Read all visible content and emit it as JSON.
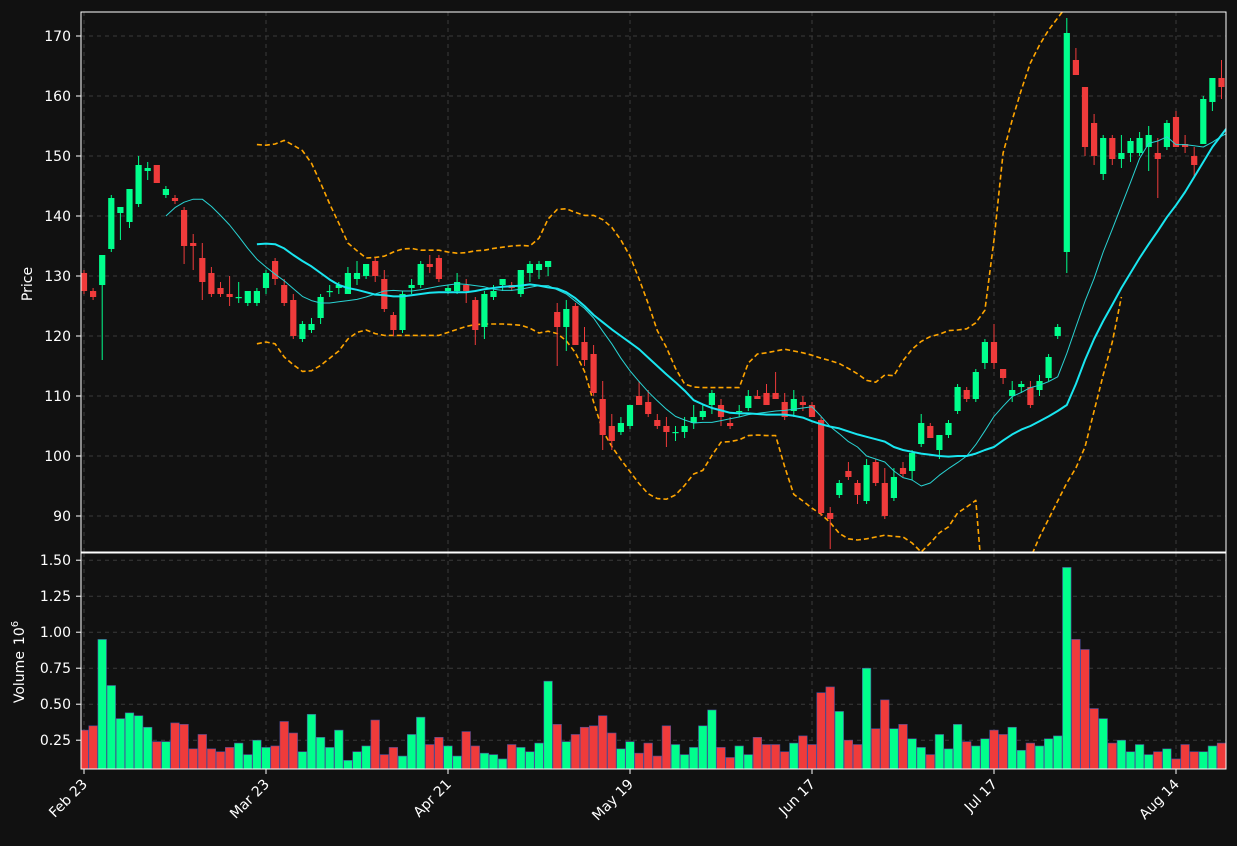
{
  "chart_data": {
    "type": "candlestick",
    "title": "",
    "colors": {
      "background": "#111111",
      "up": "#00ff8c",
      "down": "#ef3b3b",
      "ma_short": "#29d3d3",
      "ma_long": "#19e6f0",
      "bollinger": "#ffa500",
      "grid": "#3a3a3a",
      "text": "#ffffff"
    },
    "price_panel": {
      "ylabel": "Price",
      "ylim": [
        84,
        174
      ],
      "yticks": [
        90,
        100,
        110,
        120,
        130,
        140,
        150,
        160,
        170
      ],
      "grid": true
    },
    "volume_panel": {
      "ylabel": "Volume",
      "ylabel_exponent": "10",
      "ylabel_power": "6",
      "ylim": [
        0.05,
        1.55
      ],
      "yticks": [
        "0.25",
        "0.50",
        "0.75",
        "1.00",
        "1.25",
        "1.50"
      ],
      "grid": true
    },
    "xticks": [
      {
        "index": 0,
        "label": "Feb 23"
      },
      {
        "index": 20,
        "label": "Mar 23"
      },
      {
        "index": 40,
        "label": "Apr 21"
      },
      {
        "index": 60,
        "label": "May 19"
      },
      {
        "index": 80,
        "label": "Jun 17"
      },
      {
        "index": 100,
        "label": "Jul 17"
      },
      {
        "index": 120,
        "label": "Aug 14"
      }
    ],
    "ohlc": [
      [
        130.5,
        131.0,
        127.0,
        127.5
      ],
      [
        127.5,
        128.0,
        126.0,
        126.5
      ],
      [
        128.5,
        133.5,
        116.0,
        133.5
      ],
      [
        134.5,
        143.5,
        134.0,
        143.0
      ],
      [
        140.5,
        141.5,
        136.0,
        141.5
      ],
      [
        139.0,
        144.5,
        138.0,
        144.5
      ],
      [
        142.0,
        150.0,
        141.5,
        148.5
      ],
      [
        147.5,
        149.0,
        146.0,
        148.0
      ],
      [
        148.5,
        148.5,
        146.0,
        145.5
      ],
      [
        143.5,
        145.0,
        143.0,
        144.5
      ],
      [
        143.0,
        143.5,
        142.0,
        142.5
      ],
      [
        141.0,
        141.5,
        132.0,
        135.0
      ],
      [
        135.5,
        137.0,
        131.0,
        135.0
      ],
      [
        133.0,
        135.5,
        126.0,
        129.0
      ],
      [
        130.5,
        131.5,
        126.5,
        127.0
      ],
      [
        128.0,
        129.0,
        126.5,
        127.0
      ],
      [
        127.0,
        130.0,
        125.0,
        126.5
      ],
      [
        126.5,
        129.0,
        125.5,
        126.5
      ],
      [
        125.5,
        127.5,
        125.0,
        127.5
      ],
      [
        125.5,
        128.0,
        125.0,
        127.5
      ],
      [
        128.0,
        131.0,
        127.0,
        130.5
      ],
      [
        132.5,
        133.0,
        128.5,
        129.5
      ],
      [
        128.5,
        129.5,
        125.0,
        125.5
      ],
      [
        126.0,
        127.0,
        119.5,
        120.0
      ],
      [
        119.5,
        122.5,
        119.0,
        122.0
      ],
      [
        121.0,
        123.0,
        120.5,
        122.0
      ],
      [
        123.0,
        127.0,
        122.0,
        126.5
      ],
      [
        127.5,
        128.5,
        126.5,
        127.5
      ],
      [
        128.0,
        129.0,
        127.0,
        128.5
      ],
      [
        127.0,
        131.5,
        127.0,
        130.5
      ],
      [
        129.5,
        132.5,
        128.5,
        130.5
      ],
      [
        130.0,
        132.0,
        129.5,
        132.0
      ],
      [
        132.5,
        133.0,
        129.0,
        130.0
      ],
      [
        129.5,
        131.0,
        124.0,
        124.5
      ],
      [
        123.5,
        124.0,
        120.0,
        121.0
      ],
      [
        121.0,
        127.5,
        120.5,
        127.0
      ],
      [
        128.0,
        129.5,
        127.0,
        128.5
      ],
      [
        128.5,
        132.5,
        128.0,
        132.0
      ],
      [
        132.0,
        133.5,
        130.5,
        131.5
      ],
      [
        133.0,
        133.5,
        129.0,
        129.5
      ],
      [
        127.5,
        128.5,
        127.0,
        128.0
      ],
      [
        127.5,
        130.5,
        127.0,
        129.0
      ],
      [
        128.5,
        129.5,
        125.5,
        127.5
      ],
      [
        126.0,
        126.5,
        118.5,
        121.0
      ],
      [
        121.5,
        127.5,
        119.5,
        127.0
      ],
      [
        126.5,
        128.5,
        126.0,
        127.5
      ],
      [
        128.5,
        129.5,
        127.5,
        129.5
      ],
      [
        128.5,
        129.0,
        127.5,
        128.0
      ],
      [
        127.0,
        131.0,
        126.5,
        131.0
      ],
      [
        130.5,
        132.5,
        129.0,
        132.0
      ],
      [
        131.0,
        132.5,
        129.5,
        132.0
      ],
      [
        131.5,
        132.5,
        130.0,
        132.5
      ],
      [
        124.0,
        125.5,
        115.0,
        121.5
      ],
      [
        121.5,
        126.0,
        117.5,
        124.5
      ],
      [
        125.0,
        125.5,
        119.0,
        118.5
      ],
      [
        119.0,
        121.5,
        115.0,
        116.0
      ],
      [
        117.0,
        118.5,
        110.0,
        110.5
      ],
      [
        109.5,
        112.5,
        101.0,
        103.5
      ],
      [
        105.0,
        107.0,
        101.0,
        102.5
      ],
      [
        104.0,
        106.5,
        103.5,
        105.5
      ],
      [
        105.0,
        108.5,
        104.5,
        108.5
      ],
      [
        110.0,
        112.5,
        109.0,
        108.5
      ],
      [
        109.0,
        111.0,
        106.5,
        107.0
      ],
      [
        106.0,
        107.0,
        104.5,
        105.0
      ],
      [
        105.0,
        106.5,
        101.5,
        104.0
      ],
      [
        104.0,
        105.0,
        102.5,
        104.0
      ],
      [
        104.0,
        106.5,
        103.0,
        105.0
      ],
      [
        105.5,
        108.5,
        104.5,
        106.5
      ],
      [
        106.5,
        108.5,
        106.0,
        107.5
      ],
      [
        108.5,
        111.0,
        107.0,
        110.5
      ],
      [
        108.5,
        109.5,
        105.0,
        106.5
      ],
      [
        105.5,
        106.5,
        104.5,
        105.0
      ],
      [
        107.5,
        108.5,
        106.5,
        107.5
      ],
      [
        108.0,
        111.0,
        107.5,
        110.0
      ],
      [
        110.0,
        111.0,
        109.5,
        109.5
      ],
      [
        110.5,
        112.0,
        108.5,
        108.5
      ],
      [
        110.5,
        114.0,
        109.5,
        109.5
      ],
      [
        109.0,
        110.5,
        106.0,
        106.5
      ],
      [
        107.5,
        111.0,
        106.5,
        109.5
      ],
      [
        109.0,
        110.0,
        107.5,
        108.5
      ],
      [
        108.5,
        109.0,
        106.5,
        106.5
      ],
      [
        106.0,
        106.5,
        90.0,
        90.5
      ],
      [
        90.5,
        91.5,
        84.5,
        89.5
      ],
      [
        93.5,
        96.0,
        93.0,
        95.5
      ],
      [
        97.5,
        99.0,
        96.0,
        96.5
      ],
      [
        95.5,
        96.0,
        92.0,
        93.5
      ],
      [
        92.5,
        99.5,
        92.0,
        98.5
      ],
      [
        99.0,
        99.5,
        95.0,
        95.5
      ],
      [
        95.5,
        98.0,
        89.5,
        90.0
      ],
      [
        93.0,
        98.0,
        92.5,
        96.5
      ],
      [
        98.0,
        99.0,
        96.5,
        97.0
      ],
      [
        97.5,
        101.0,
        96.0,
        100.5
      ],
      [
        102.0,
        107.0,
        101.5,
        105.5
      ],
      [
        105.0,
        105.5,
        103.0,
        103.0
      ],
      [
        101.0,
        103.5,
        99.5,
        103.5
      ],
      [
        103.5,
        106.0,
        103.0,
        105.5
      ],
      [
        107.5,
        112.0,
        107.0,
        111.5
      ],
      [
        111.0,
        111.5,
        109.0,
        109.5
      ],
      [
        109.5,
        114.5,
        109.0,
        114.0
      ],
      [
        115.5,
        119.5,
        114.5,
        119.0
      ],
      [
        119.0,
        122.0,
        114.5,
        115.5
      ],
      [
        114.5,
        114.5,
        112.0,
        113.0
      ],
      [
        110.0,
        112.5,
        109.0,
        111.0
      ],
      [
        111.5,
        112.5,
        110.5,
        112.0
      ],
      [
        111.5,
        112.5,
        108.0,
        108.5
      ],
      [
        111.0,
        113.5,
        110.0,
        112.5
      ],
      [
        113.0,
        117.0,
        112.5,
        116.5
      ],
      [
        120.0,
        122.0,
        119.5,
        121.5
      ],
      [
        134.0,
        173.0,
        130.5,
        170.5
      ],
      [
        166.0,
        168.0,
        163.5,
        163.5
      ],
      [
        161.5,
        161.5,
        150.0,
        151.5
      ],
      [
        155.5,
        157.0,
        148.5,
        150.0
      ],
      [
        147.0,
        153.5,
        146.0,
        153.0
      ],
      [
        153.0,
        153.5,
        148.5,
        149.5
      ],
      [
        149.5,
        153.5,
        148.0,
        150.5
      ],
      [
        150.5,
        153.0,
        149.0,
        152.5
      ],
      [
        150.5,
        154.0,
        150.0,
        153.0
      ],
      [
        151.5,
        155.0,
        147.5,
        153.5
      ],
      [
        150.5,
        153.0,
        143.0,
        149.5
      ],
      [
        151.5,
        156.0,
        151.0,
        155.5
      ],
      [
        156.5,
        157.5,
        151.5,
        151.5
      ],
      [
        152.0,
        153.5,
        150.5,
        151.5
      ],
      [
        150.0,
        151.5,
        146.5,
        148.5
      ],
      [
        152.0,
        160.0,
        152.0,
        159.5
      ],
      [
        159.0,
        163.0,
        157.5,
        163.0
      ],
      [
        163.0,
        166.0,
        159.5,
        161.5
      ]
    ],
    "volume": [
      0.32,
      0.35,
      0.95,
      0.63,
      0.4,
      0.44,
      0.42,
      0.34,
      0.24,
      0.24,
      0.37,
      0.36,
      0.19,
      0.29,
      0.19,
      0.17,
      0.2,
      0.23,
      0.15,
      0.25,
      0.2,
      0.21,
      0.38,
      0.3,
      0.17,
      0.43,
      0.27,
      0.2,
      0.32,
      0.11,
      0.17,
      0.21,
      0.39,
      0.15,
      0.2,
      0.14,
      0.29,
      0.41,
      0.22,
      0.27,
      0.21,
      0.14,
      0.31,
      0.21,
      0.16,
      0.15,
      0.12,
      0.22,
      0.2,
      0.17,
      0.23,
      0.66,
      0.36,
      0.24,
      0.29,
      0.34,
      0.35,
      0.42,
      0.3,
      0.19,
      0.24,
      0.16,
      0.23,
      0.14,
      0.35,
      0.22,
      0.15,
      0.2,
      0.35,
      0.46,
      0.2,
      0.13,
      0.21,
      0.15,
      0.27,
      0.22,
      0.22,
      0.17,
      0.23,
      0.28,
      0.22,
      0.58,
      0.62,
      0.45,
      0.25,
      0.22,
      0.75,
      0.33,
      0.53,
      0.33,
      0.36,
      0.26,
      0.2,
      0.15,
      0.29,
      0.19,
      0.36,
      0.24,
      0.21,
      0.26,
      0.32,
      0.29,
      0.34,
      0.18,
      0.23,
      0.21,
      0.26,
      0.28,
      1.45,
      0.95,
      0.88,
      0.47,
      0.4,
      0.23,
      0.25,
      0.17,
      0.22,
      0.15,
      0.17,
      0.19,
      0.12,
      0.22,
      0.17,
      0.17,
      0.21,
      0.23
    ],
    "ma_short": [
      null,
      null,
      null,
      null,
      null,
      null,
      null,
      null,
      null,
      140.0,
      141.4,
      142.3,
      142.8,
      142.8,
      141.6,
      140.1,
      138.5,
      136.6,
      134.6,
      132.8,
      131.5,
      130.3,
      129.2,
      127.9,
      126.6,
      125.9,
      125.5,
      125.5,
      125.7,
      125.9,
      126.1,
      126.5,
      127.0,
      127.5,
      127.6,
      127.5,
      127.5,
      127.7,
      128.0,
      128.3,
      128.5,
      128.7,
      128.6,
      128.4,
      128.2,
      127.8,
      127.6,
      127.6,
      127.8,
      128.1,
      128.4,
      128.4,
      127.7,
      127.0,
      125.8,
      124.6,
      123.0,
      120.8,
      118.7,
      116.3,
      114.2,
      112.4,
      110.7,
      109.2,
      107.8,
      106.6,
      106.0,
      105.5,
      105.6,
      105.6,
      105.9,
      106.2,
      106.5,
      106.9,
      107.1,
      107.3,
      107.5,
      107.6,
      107.8,
      108.0,
      108.2,
      106.6,
      104.9,
      103.7,
      102.4,
      101.5,
      100.0,
      99.5,
      99.0,
      97.5,
      96.4,
      96.0,
      95.0,
      95.5,
      96.8,
      97.9,
      98.9,
      100.0,
      101.9,
      104.2,
      106.6,
      108.3,
      109.9,
      110.6,
      111.4,
      111.8,
      112.4,
      113.2,
      117.1,
      121.5,
      125.8,
      129.6,
      134.0,
      137.8,
      141.7,
      145.6,
      149.6,
      152.1,
      152.5,
      153.2,
      151.9,
      151.9,
      151.7,
      151.5,
      152.3,
      153.3,
      154.1
    ],
    "ma_long": [
      null,
      null,
      null,
      null,
      null,
      null,
      null,
      null,
      null,
      null,
      null,
      null,
      null,
      null,
      null,
      null,
      null,
      null,
      null,
      135.3,
      135.4,
      135.3,
      134.6,
      133.5,
      132.5,
      131.6,
      130.5,
      129.4,
      128.5,
      128.0,
      127.7,
      127.3,
      126.9,
      126.8,
      126.6,
      126.6,
      126.8,
      127.0,
      127.2,
      127.3,
      127.3,
      127.3,
      127.3,
      127.5,
      127.8,
      128.0,
      128.2,
      128.3,
      128.4,
      128.6,
      128.4,
      128.1,
      127.9,
      127.3,
      126.3,
      125.0,
      123.5,
      122.3,
      121.1,
      120.0,
      118.9,
      117.8,
      116.4,
      115.0,
      113.6,
      112.3,
      110.9,
      109.3,
      108.6,
      108.0,
      107.6,
      107.2,
      107.1,
      107.1,
      107.0,
      106.9,
      106.9,
      106.9,
      106.7,
      106.4,
      105.8,
      105.3,
      104.9,
      104.6,
      104.1,
      103.6,
      103.2,
      102.8,
      102.4,
      101.5,
      101.0,
      100.7,
      100.4,
      100.2,
      100.0,
      99.9,
      100.0,
      100.0,
      100.4,
      101.0,
      101.5,
      102.6,
      103.6,
      104.4,
      105.0,
      105.8,
      106.6,
      107.5,
      108.5,
      112.0,
      116.0,
      119.5,
      122.5,
      125.2,
      128.0,
      130.5,
      133.0,
      135.3,
      137.5,
      139.8,
      141.8,
      144.0,
      146.5,
      149.0,
      151.5,
      153.5,
      155.5
    ],
    "bb_upper": [
      null,
      null,
      null,
      null,
      null,
      null,
      null,
      null,
      null,
      null,
      null,
      null,
      null,
      null,
      null,
      null,
      null,
      null,
      null,
      151.9,
      151.8,
      152.0,
      152.6,
      151.8,
      150.9,
      148.8,
      145.5,
      142.0,
      138.8,
      135.5,
      134.2,
      133.0,
      133.1,
      133.3,
      134.0,
      134.5,
      134.6,
      134.3,
      134.3,
      134.3,
      134.0,
      133.8,
      133.9,
      134.2,
      134.3,
      134.6,
      134.8,
      135.0,
      135.1,
      135.0,
      136.3,
      139.5,
      141.1,
      141.2,
      140.6,
      140.1,
      140.1,
      139.4,
      138.1,
      136.0,
      133.3,
      129.5,
      125.4,
      120.9,
      118.1,
      114.6,
      112.0,
      111.5,
      111.4,
      111.4,
      111.4,
      111.4,
      111.4,
      115.5,
      117.0,
      117.2,
      117.5,
      117.8,
      117.5,
      117.2,
      116.8,
      116.3,
      115.9,
      115.4,
      114.6,
      113.7,
      112.6,
      112.3,
      113.5,
      113.4,
      115.9,
      117.8,
      119.1,
      119.9,
      120.3,
      120.9,
      121.0,
      121.2,
      122.2,
      124.3,
      136.0,
      150.5,
      156.0,
      161.0,
      165.5,
      168.5,
      171.0,
      173.0,
      175.0,
      178.0,
      182.0,
      186.0,
      190.0,
      194.0,
      198.0,
      202.0,
      206.0
    ],
    "bb_lower": [
      null,
      null,
      null,
      null,
      null,
      null,
      null,
      null,
      null,
      null,
      null,
      null,
      null,
      null,
      null,
      null,
      null,
      null,
      null,
      118.7,
      119.0,
      118.7,
      116.5,
      115.2,
      114.1,
      114.2,
      115.1,
      116.3,
      117.5,
      119.5,
      120.6,
      121.0,
      120.4,
      120.1,
      120.1,
      120.1,
      120.1,
      120.1,
      120.1,
      120.1,
      120.6,
      121.1,
      121.6,
      121.9,
      122.0,
      122.0,
      122.0,
      121.9,
      121.8,
      121.3,
      120.5,
      120.8,
      120.4,
      119.2,
      117.2,
      114.1,
      109.0,
      104.2,
      101.6,
      99.4,
      97.4,
      95.4,
      93.7,
      92.9,
      92.8,
      93.5,
      95.1,
      97.0,
      97.6,
      100.1,
      102.3,
      102.4,
      102.7,
      103.4,
      103.5,
      103.4,
      103.4,
      98.2,
      93.6,
      92.5,
      91.3,
      90.3,
      88.9,
      87.1,
      86.2,
      86.0,
      86.2,
      86.5,
      86.8,
      86.6,
      86.5,
      85.5,
      84.0,
      85.5,
      87.2,
      88.2,
      90.5,
      91.5,
      92.6,
      74.0,
      70.0,
      73.0,
      76.0,
      79.5,
      83.0,
      86.5,
      89.5,
      92.5,
      95.5,
      98.0,
      101.5,
      107.5,
      113.5,
      119.0,
      126.5
    ]
  }
}
